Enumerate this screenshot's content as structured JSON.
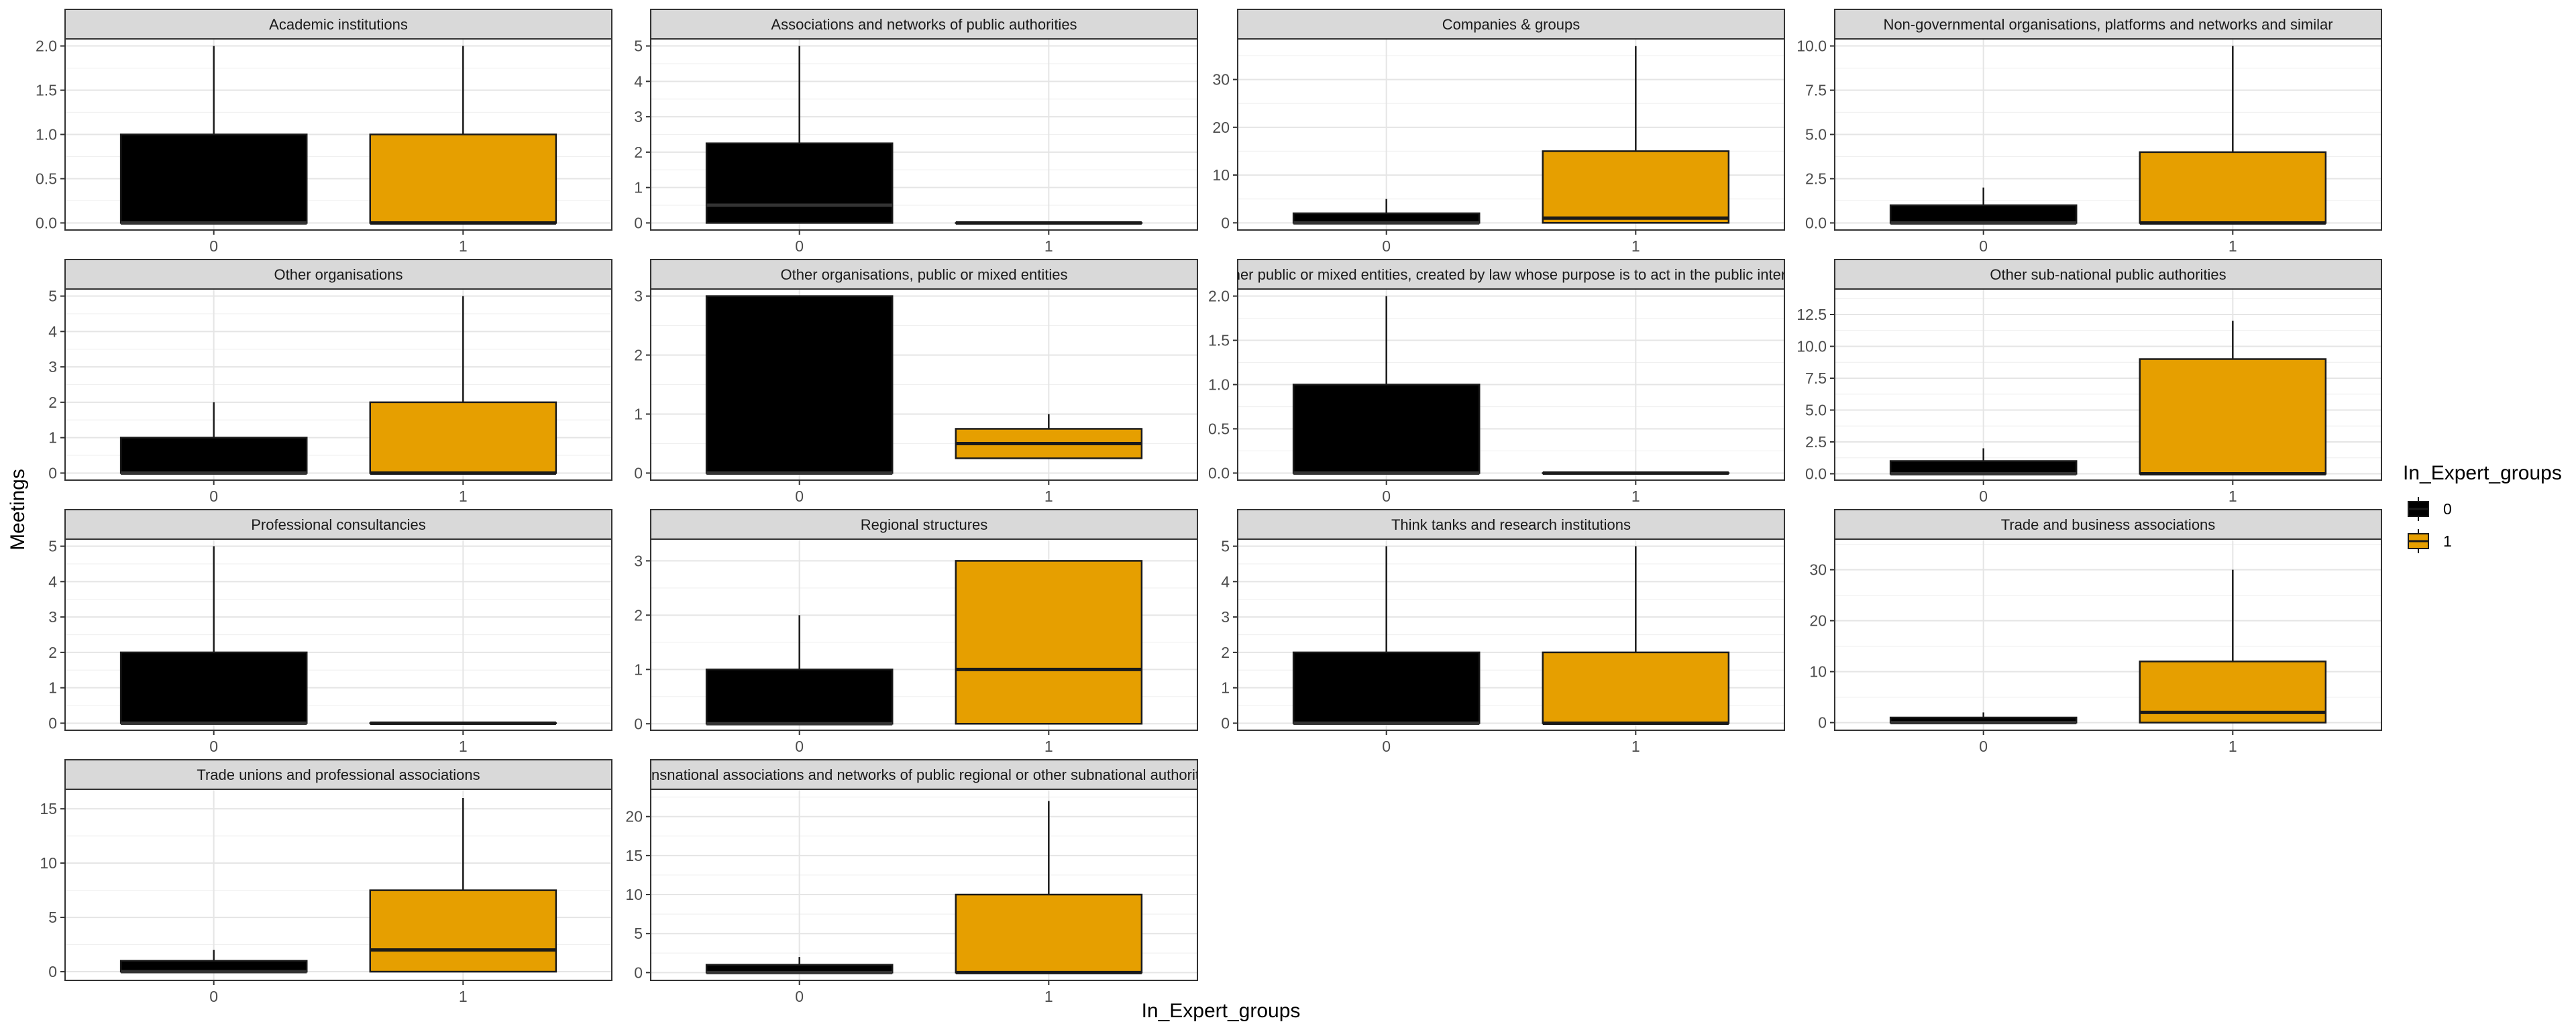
{
  "chart_data": {
    "type": "boxplot",
    "xlabel": "In_Expert_groups",
    "ylabel": "Meetings",
    "categories": [
      "0",
      "1"
    ],
    "legend": {
      "title": "In_Expert_groups",
      "position": "right",
      "entries": [
        {
          "label": "0",
          "color": "#000000"
        },
        {
          "label": "1",
          "color": "#E69F00"
        }
      ]
    },
    "grid": true,
    "facets": [
      {
        "title": "Academic institutions",
        "ylim": [
          -0.08,
          2.08
        ],
        "yticks": [
          0,
          0.5,
          1,
          1.5,
          2
        ],
        "ytick_labels": [
          "0.0",
          "0.5",
          "1.0",
          "1.5",
          "2.0"
        ],
        "boxes": [
          {
            "group": "0",
            "min": 0,
            "q1": 0,
            "median": 0,
            "q3": 1,
            "max": 2
          },
          {
            "group": "1",
            "min": 0,
            "q1": 0,
            "median": 0,
            "q3": 1,
            "max": 2
          }
        ]
      },
      {
        "title": "Associations and networks of public authorities",
        "ylim": [
          -0.2,
          5.2
        ],
        "yticks": [
          0,
          1,
          2,
          3,
          4,
          5
        ],
        "ytick_labels": [
          "0",
          "1",
          "2",
          "3",
          "4",
          "5"
        ],
        "boxes": [
          {
            "group": "0",
            "min": 0,
            "q1": 0,
            "median": 0.5,
            "q3": 2.25,
            "max": 5
          },
          {
            "group": "1",
            "min": 0,
            "q1": 0,
            "median": 0,
            "q3": 0,
            "max": 0
          }
        ]
      },
      {
        "title": "Companies & groups",
        "ylim": [
          -1.5,
          38.5
        ],
        "yticks": [
          0,
          10,
          20,
          30
        ],
        "ytick_labels": [
          "0",
          "10",
          "20",
          "30"
        ],
        "boxes": [
          {
            "group": "0",
            "min": 0,
            "q1": 0,
            "median": 0,
            "q3": 2,
            "max": 5
          },
          {
            "group": "1",
            "min": 0,
            "q1": 0,
            "median": 1,
            "q3": 15,
            "max": 37
          }
        ]
      },
      {
        "title": "Non-governmental organisations, platforms and networks and similar",
        "ylim": [
          -0.4,
          10.4
        ],
        "yticks": [
          0,
          2.5,
          5,
          7.5,
          10
        ],
        "ytick_labels": [
          "0.0",
          "2.5",
          "5.0",
          "7.5",
          "10.0"
        ],
        "boxes": [
          {
            "group": "0",
            "min": 0,
            "q1": 0,
            "median": 0,
            "q3": 1,
            "max": 2
          },
          {
            "group": "1",
            "min": 0,
            "q1": 0,
            "median": 0,
            "q3": 4,
            "max": 10
          }
        ]
      },
      {
        "title": "Other organisations",
        "ylim": [
          -0.2,
          5.2
        ],
        "yticks": [
          0,
          1,
          2,
          3,
          4,
          5
        ],
        "ytick_labels": [
          "0",
          "1",
          "2",
          "3",
          "4",
          "5"
        ],
        "boxes": [
          {
            "group": "0",
            "min": 0,
            "q1": 0,
            "median": 0,
            "q3": 1,
            "max": 2
          },
          {
            "group": "1",
            "min": 0,
            "q1": 0,
            "median": 0,
            "q3": 2,
            "max": 5
          }
        ]
      },
      {
        "title": "Other organisations, public or mixed entities",
        "ylim": [
          -0.12,
          3.12
        ],
        "yticks": [
          0,
          1,
          2,
          3
        ],
        "ytick_labels": [
          "0",
          "1",
          "2",
          "3"
        ],
        "boxes": [
          {
            "group": "0",
            "min": 0,
            "q1": 0,
            "median": 0,
            "q3": 3,
            "max": 3
          },
          {
            "group": "1",
            "min": 0.25,
            "q1": 0.25,
            "median": 0.5,
            "q3": 0.75,
            "max": 1
          }
        ]
      },
      {
        "title": "Other public or mixed entities, created by law whose purpose is to act in the public interest",
        "ylim": [
          -0.08,
          2.08
        ],
        "yticks": [
          0,
          0.5,
          1,
          1.5,
          2
        ],
        "ytick_labels": [
          "0.0",
          "0.5",
          "1.0",
          "1.5",
          "2.0"
        ],
        "boxes": [
          {
            "group": "0",
            "min": 0,
            "q1": 0,
            "median": 0,
            "q3": 1,
            "max": 2
          },
          {
            "group": "1",
            "min": 0,
            "q1": 0,
            "median": 0,
            "q3": 0,
            "max": 0
          }
        ]
      },
      {
        "title": "Other sub-national public authorities",
        "ylim": [
          -0.5,
          14.5
        ],
        "yticks": [
          0,
          2.5,
          5,
          7.5,
          10,
          12.5
        ],
        "ytick_labels": [
          "0.0",
          "2.5",
          "5.0",
          "7.5",
          "10.0",
          "12.5"
        ],
        "boxes": [
          {
            "group": "0",
            "min": 0,
            "q1": 0,
            "median": 0,
            "q3": 1,
            "max": 2
          },
          {
            "group": "1",
            "min": 0,
            "q1": 0,
            "median": 0,
            "q3": 9,
            "max": 12
          }
        ]
      },
      {
        "title": "Professional consultancies",
        "ylim": [
          -0.2,
          5.2
        ],
        "yticks": [
          0,
          1,
          2,
          3,
          4,
          5
        ],
        "ytick_labels": [
          "0",
          "1",
          "2",
          "3",
          "4",
          "5"
        ],
        "boxes": [
          {
            "group": "0",
            "min": 0,
            "q1": 0,
            "median": 0,
            "q3": 2,
            "max": 5
          },
          {
            "group": "1",
            "min": 0,
            "q1": 0,
            "median": 0,
            "q3": 0,
            "max": 0
          }
        ]
      },
      {
        "title": "Regional structures",
        "ylim": [
          -0.12,
          3.4
        ],
        "yticks": [
          0,
          1,
          2,
          3
        ],
        "ytick_labels": [
          "0",
          "1",
          "2",
          "3"
        ],
        "boxes": [
          {
            "group": "0",
            "min": 0,
            "q1": 0,
            "median": 0,
            "q3": 1,
            "max": 2
          },
          {
            "group": "1",
            "min": 0,
            "q1": 0,
            "median": 1,
            "q3": 3,
            "max": 3
          }
        ]
      },
      {
        "title": "Think tanks and research institutions",
        "ylim": [
          -0.2,
          5.2
        ],
        "yticks": [
          0,
          1,
          2,
          3,
          4,
          5
        ],
        "ytick_labels": [
          "0",
          "1",
          "2",
          "3",
          "4",
          "5"
        ],
        "boxes": [
          {
            "group": "0",
            "min": 0,
            "q1": 0,
            "median": 0,
            "q3": 2,
            "max": 5
          },
          {
            "group": "1",
            "min": 0,
            "q1": 0,
            "median": 0,
            "q3": 2,
            "max": 5
          }
        ]
      },
      {
        "title": "Trade and business associations",
        "ylim": [
          -1.5,
          36
        ],
        "yticks": [
          0,
          10,
          20,
          30
        ],
        "ytick_labels": [
          "0",
          "10",
          "20",
          "30"
        ],
        "boxes": [
          {
            "group": "0",
            "min": 0,
            "q1": 0,
            "median": 0,
            "q3": 1,
            "max": 2
          },
          {
            "group": "1",
            "min": 0,
            "q1": 0,
            "median": 2,
            "q3": 12,
            "max": 30
          }
        ]
      },
      {
        "title": "Trade unions and professional associations",
        "ylim": [
          -0.8,
          16.8
        ],
        "yticks": [
          0,
          5,
          10,
          15
        ],
        "ytick_labels": [
          "0",
          "5",
          "10",
          "15"
        ],
        "boxes": [
          {
            "group": "0",
            "min": 0,
            "q1": 0,
            "median": 0,
            "q3": 1,
            "max": 2
          },
          {
            "group": "1",
            "min": 0,
            "q1": 0,
            "median": 2,
            "q3": 7.5,
            "max": 16
          }
        ]
      },
      {
        "title": "Transnational associations and networks of public regional or other subnational authorities",
        "ylim": [
          -1,
          23.5
        ],
        "yticks": [
          0,
          5,
          10,
          15,
          20
        ],
        "ytick_labels": [
          "0",
          "5",
          "10",
          "15",
          "20"
        ],
        "boxes": [
          {
            "group": "0",
            "min": 0,
            "q1": 0,
            "median": 0,
            "q3": 1,
            "max": 2
          },
          {
            "group": "1",
            "min": 0,
            "q1": 0,
            "median": 0,
            "q3": 10,
            "max": 22
          }
        ]
      }
    ]
  }
}
